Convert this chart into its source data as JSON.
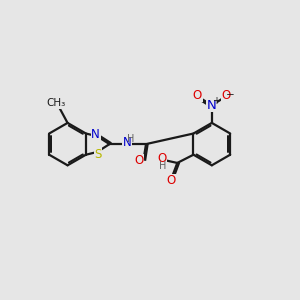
{
  "bg_color": "#e6e6e6",
  "bond_color": "#1a1a1a",
  "bond_width": 1.6,
  "N_color": "#0000cc",
  "S_color": "#b8b800",
  "O_color": "#dd0000",
  "H_color": "#606060",
  "C_color": "#1a1a1a",
  "font_size": 8.5,
  "xlim": [
    0,
    10
  ],
  "ylim": [
    0,
    10
  ]
}
